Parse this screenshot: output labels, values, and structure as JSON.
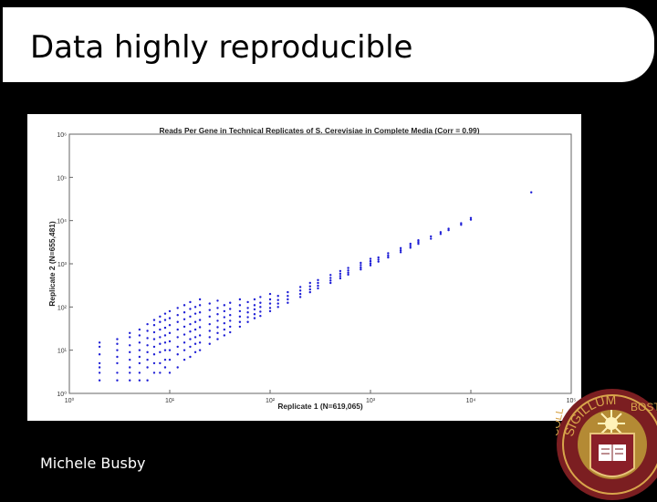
{
  "slide": {
    "title": "Data highly reproducible",
    "author": "Michele Busby",
    "seal": {
      "top_text": "SIGILLUM",
      "right_text": "BOSTO",
      "left_text": "COLL"
    }
  },
  "chart_data": {
    "type": "scatter",
    "title": "Reads Per Gene in Technical Replicates of S. Cerevisiae in Complete Media (Corr = 0.99)",
    "xlabel": "Replicate 1 (N=619,065)",
    "ylabel": "Replicate 2 (N=655,481)",
    "x_scale": "log",
    "y_scale": "log",
    "xlim": [
      1,
      100000
    ],
    "ylim": [
      1,
      1000000
    ],
    "x_ticks": [
      {
        "value": 1,
        "label": "10⁰"
      },
      {
        "value": 10,
        "label": "10¹"
      },
      {
        "value": 100,
        "label": "10²"
      },
      {
        "value": 1000,
        "label": "10³"
      },
      {
        "value": 10000,
        "label": "10⁴"
      },
      {
        "value": 100000,
        "label": "10⁵"
      }
    ],
    "y_ticks": [
      {
        "value": 1,
        "label": "10⁰"
      },
      {
        "value": 10,
        "label": "10¹"
      },
      {
        "value": 100,
        "label": "10²"
      },
      {
        "value": 1000,
        "label": "10³"
      },
      {
        "value": 10000,
        "label": "10⁴"
      },
      {
        "value": 100000,
        "label": "10⁵"
      },
      {
        "value": 1000000,
        "label": "10⁶"
      }
    ],
    "grid": false,
    "marker_color": "#1f1fd6",
    "series": [
      {
        "points": [
          [
            2,
            2
          ],
          [
            2,
            3
          ],
          [
            2,
            4
          ],
          [
            2,
            5
          ],
          [
            2,
            8
          ],
          [
            2,
            12
          ],
          [
            2,
            15
          ],
          [
            3,
            2
          ],
          [
            3,
            3
          ],
          [
            3,
            5
          ],
          [
            3,
            7
          ],
          [
            3,
            10
          ],
          [
            3,
            14
          ],
          [
            3,
            18
          ],
          [
            4,
            2
          ],
          [
            4,
            3
          ],
          [
            4,
            4
          ],
          [
            4,
            6
          ],
          [
            4,
            9
          ],
          [
            4,
            13
          ],
          [
            4,
            20
          ],
          [
            4,
            25
          ],
          [
            5,
            2
          ],
          [
            5,
            3
          ],
          [
            5,
            5
          ],
          [
            5,
            7
          ],
          [
            5,
            10
          ],
          [
            5,
            15
          ],
          [
            5,
            22
          ],
          [
            5,
            30
          ],
          [
            6,
            2
          ],
          [
            6,
            4
          ],
          [
            6,
            6
          ],
          [
            6,
            9
          ],
          [
            6,
            13
          ],
          [
            6,
            19
          ],
          [
            6,
            28
          ],
          [
            6,
            40
          ],
          [
            7,
            3
          ],
          [
            7,
            5
          ],
          [
            7,
            8
          ],
          [
            7,
            12
          ],
          [
            7,
            18
          ],
          [
            7,
            26
          ],
          [
            7,
            38
          ],
          [
            7,
            50
          ],
          [
            8,
            3
          ],
          [
            8,
            5
          ],
          [
            8,
            9
          ],
          [
            8,
            14
          ],
          [
            8,
            20
          ],
          [
            8,
            30
          ],
          [
            8,
            45
          ],
          [
            8,
            60
          ],
          [
            9,
            4
          ],
          [
            9,
            6
          ],
          [
            9,
            10
          ],
          [
            9,
            15
          ],
          [
            9,
            22
          ],
          [
            9,
            33
          ],
          [
            9,
            50
          ],
          [
            9,
            70
          ],
          [
            10,
            3
          ],
          [
            10,
            6
          ],
          [
            10,
            10
          ],
          [
            10,
            16
          ],
          [
            10,
            25
          ],
          [
            10,
            38
          ],
          [
            10,
            55
          ],
          [
            10,
            80
          ],
          [
            12,
            4
          ],
          [
            12,
            8
          ],
          [
            12,
            12
          ],
          [
            12,
            20
          ],
          [
            12,
            30
          ],
          [
            12,
            45
          ],
          [
            12,
            65
          ],
          [
            12,
            95
          ],
          [
            14,
            6
          ],
          [
            14,
            10
          ],
          [
            14,
            15
          ],
          [
            14,
            23
          ],
          [
            14,
            35
          ],
          [
            14,
            52
          ],
          [
            14,
            75
          ],
          [
            14,
            110
          ],
          [
            16,
            7
          ],
          [
            16,
            12
          ],
          [
            16,
            18
          ],
          [
            16,
            27
          ],
          [
            16,
            40
          ],
          [
            16,
            60
          ],
          [
            16,
            90
          ],
          [
            16,
            130
          ],
          [
            18,
            9
          ],
          [
            18,
            14
          ],
          [
            18,
            20
          ],
          [
            18,
            30
          ],
          [
            18,
            45
          ],
          [
            18,
            70
          ],
          [
            18,
            100
          ],
          [
            20,
            10
          ],
          [
            20,
            15
          ],
          [
            20,
            22
          ],
          [
            20,
            34
          ],
          [
            20,
            50
          ],
          [
            20,
            75
          ],
          [
            20,
            110
          ],
          [
            20,
            150
          ],
          [
            25,
            14
          ],
          [
            25,
            20
          ],
          [
            25,
            28
          ],
          [
            25,
            40
          ],
          [
            25,
            60
          ],
          [
            25,
            85
          ],
          [
            25,
            120
          ],
          [
            30,
            18
          ],
          [
            30,
            25
          ],
          [
            30,
            34
          ],
          [
            30,
            48
          ],
          [
            30,
            68
          ],
          [
            30,
            95
          ],
          [
            30,
            140
          ],
          [
            35,
            22
          ],
          [
            35,
            30
          ],
          [
            35,
            42
          ],
          [
            35,
            58
          ],
          [
            35,
            80
          ],
          [
            35,
            110
          ],
          [
            40,
            26
          ],
          [
            40,
            35
          ],
          [
            40,
            48
          ],
          [
            40,
            65
          ],
          [
            40,
            90
          ],
          [
            40,
            125
          ],
          [
            50,
            35
          ],
          [
            50,
            45
          ],
          [
            50,
            60
          ],
          [
            50,
            80
          ],
          [
            50,
            110
          ],
          [
            50,
            150
          ],
          [
            60,
            45
          ],
          [
            60,
            58
          ],
          [
            60,
            75
          ],
          [
            60,
            95
          ],
          [
            60,
            130
          ],
          [
            70,
            55
          ],
          [
            70,
            68
          ],
          [
            70,
            88
          ],
          [
            70,
            110
          ],
          [
            70,
            150
          ],
          [
            80,
            62
          ],
          [
            80,
            78
          ],
          [
            80,
            100
          ],
          [
            80,
            125
          ],
          [
            80,
            170
          ],
          [
            100,
            80
          ],
          [
            100,
            95
          ],
          [
            100,
            120
          ],
          [
            100,
            150
          ],
          [
            100,
            200
          ],
          [
            120,
            100
          ],
          [
            120,
            120
          ],
          [
            120,
            145
          ],
          [
            120,
            180
          ],
          [
            150,
            125
          ],
          [
            150,
            150
          ],
          [
            150,
            180
          ],
          [
            150,
            220
          ],
          [
            200,
            170
          ],
          [
            200,
            200
          ],
          [
            200,
            240
          ],
          [
            200,
            290
          ],
          [
            250,
            220
          ],
          [
            250,
            255
          ],
          [
            250,
            300
          ],
          [
            250,
            360
          ],
          [
            300,
            270
          ],
          [
            300,
            310
          ],
          [
            300,
            360
          ],
          [
            300,
            420
          ],
          [
            400,
            360
          ],
          [
            400,
            410
          ],
          [
            400,
            470
          ],
          [
            400,
            550
          ],
          [
            500,
            460
          ],
          [
            500,
            520
          ],
          [
            500,
            590
          ],
          [
            500,
            680
          ],
          [
            600,
            560
          ],
          [
            600,
            620
          ],
          [
            600,
            700
          ],
          [
            600,
            800
          ],
          [
            800,
            740
          ],
          [
            800,
            820
          ],
          [
            800,
            930
          ],
          [
            800,
            1050
          ],
          [
            1000,
            920
          ],
          [
            1000,
            1020
          ],
          [
            1000,
            1150
          ],
          [
            1000,
            1300
          ],
          [
            1200,
            1120
          ],
          [
            1200,
            1250
          ],
          [
            1200,
            1400
          ],
          [
            1500,
            1400
          ],
          [
            1500,
            1550
          ],
          [
            1500,
            1750
          ],
          [
            2000,
            1850
          ],
          [
            2000,
            2050
          ],
          [
            2000,
            2300
          ],
          [
            2500,
            2350
          ],
          [
            2500,
            2600
          ],
          [
            2500,
            2900
          ],
          [
            3000,
            2900
          ],
          [
            3000,
            3200
          ],
          [
            3000,
            3500
          ],
          [
            4000,
            3800
          ],
          [
            4000,
            4300
          ],
          [
            5000,
            4900
          ],
          [
            5000,
            5400
          ],
          [
            6000,
            6000
          ],
          [
            6000,
            6500
          ],
          [
            8000,
            8000
          ],
          [
            8000,
            8700
          ],
          [
            10000,
            10500
          ],
          [
            10000,
            11500
          ],
          [
            40000,
            45000
          ]
        ]
      }
    ]
  }
}
